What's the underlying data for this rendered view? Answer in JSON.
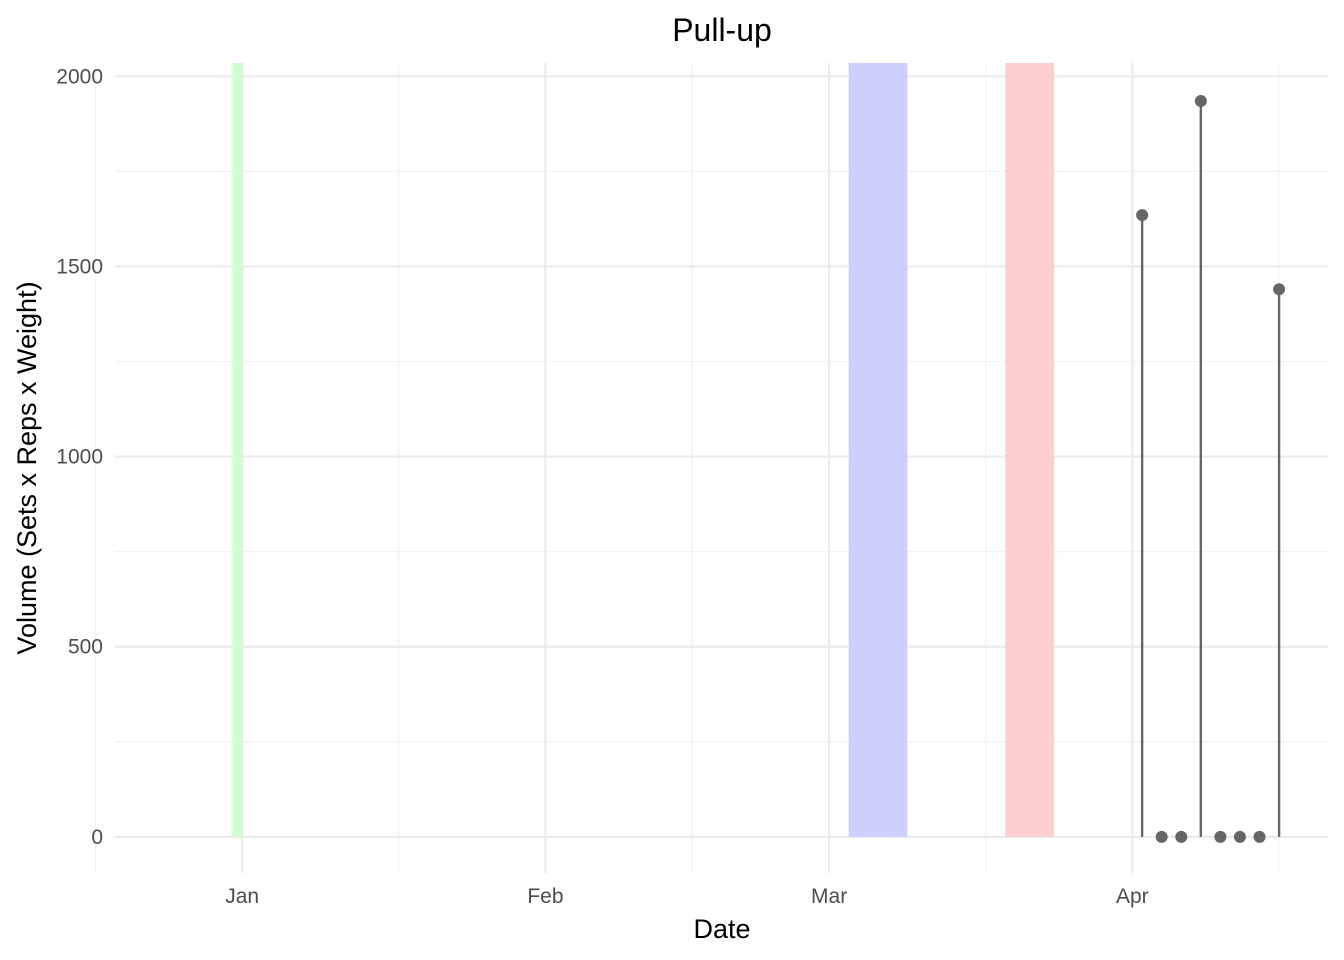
{
  "chart_data": {
    "type": "lollipop",
    "title": "Pull-up",
    "xlabel": "Date",
    "ylabel": "Volume (Sets x Reps x Weight)",
    "x_scale": "date",
    "xlim": [
      "2023-12-19",
      "2024-04-21"
    ],
    "ylim": [
      -95,
      2035
    ],
    "x_ticks": [
      {
        "date": "2024-01-01",
        "label": "Jan"
      },
      {
        "date": "2024-02-01",
        "label": "Feb"
      },
      {
        "date": "2024-03-01",
        "label": "Mar"
      },
      {
        "date": "2024-04-01",
        "label": "Apr"
      }
    ],
    "x_minor_ticks": [
      "2023-12-17",
      "2024-01-17",
      "2024-02-16",
      "2024-03-17",
      "2024-04-16"
    ],
    "y_ticks": [
      0,
      500,
      1000,
      1500,
      2000
    ],
    "y_minor_ticks": [
      250,
      750,
      1250,
      1750
    ],
    "grid": true,
    "shaded_periods": [
      {
        "start": "2023-12-31",
        "end": "2024-01-01",
        "color": "#ccffcc"
      },
      {
        "start": "2024-03-03",
        "end": "2024-03-09",
        "color": "#ccccff"
      },
      {
        "start": "2024-03-19",
        "end": "2024-03-24",
        "color": "#ffcccc"
      }
    ],
    "series": [
      {
        "color": "#666666",
        "points": [
          {
            "x": "2024-04-02",
            "y": 1635
          },
          {
            "x": "2024-04-04",
            "y": 0
          },
          {
            "x": "2024-04-06",
            "y": 0
          },
          {
            "x": "2024-04-08",
            "y": 1935
          },
          {
            "x": "2024-04-10",
            "y": 0
          },
          {
            "x": "2024-04-12",
            "y": 0
          },
          {
            "x": "2024-04-14",
            "y": 0
          },
          {
            "x": "2024-04-16",
            "y": 1440
          }
        ]
      }
    ]
  }
}
